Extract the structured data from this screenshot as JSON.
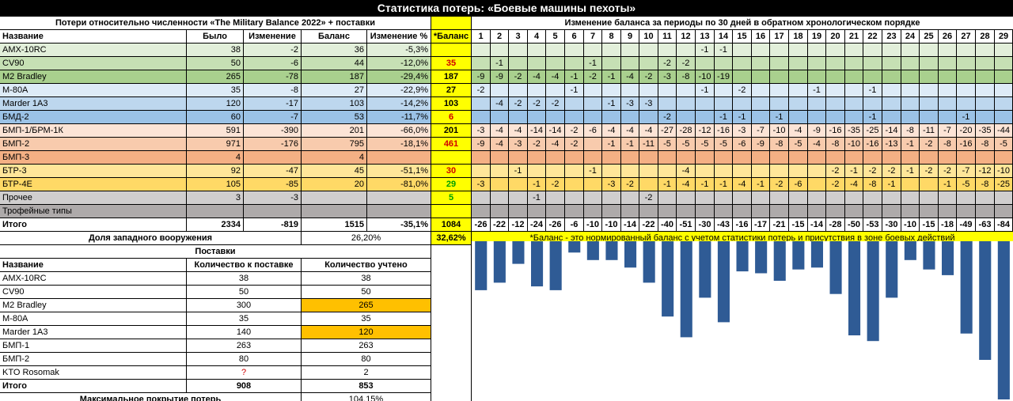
{
  "title": "Статистика потерь: «Боевые машины пехоты»",
  "left_header": "Потери относительно численности «The Military Balance 2022» + поставки",
  "right_header": "Изменение баланса за периоды по 30 дней в обратном хронологическом порядке",
  "columns": [
    "Название",
    "Было",
    "Изменение",
    "Баланс",
    "Изменение %",
    "*Баланс"
  ],
  "periods": [
    "1",
    "2",
    "3",
    "4",
    "5",
    "6",
    "7",
    "8",
    "9",
    "10",
    "11",
    "12",
    "13",
    "14",
    "15",
    "16",
    "17",
    "18",
    "19",
    "20",
    "21",
    "22",
    "23",
    "24",
    "25",
    "26",
    "27",
    "28",
    "29"
  ],
  "rows": [
    {
      "name": "AMX-10RC",
      "was": "38",
      "change": "-2",
      "balance": "36",
      "pct": "-5,3%",
      "nb": "",
      "nb_color": "",
      "bg": "#e2efda",
      "cells": [
        "",
        "",
        "",
        "",
        "",
        "",
        "",
        "",
        "",
        "",
        "",
        "",
        "-1",
        "-1",
        "",
        "",
        "",
        "",
        "",
        "",
        "",
        "",
        "",
        "",
        "",
        "",
        "",
        "",
        ""
      ]
    },
    {
      "name": "CV90",
      "was": "50",
      "change": "-6",
      "balance": "44",
      "pct": "-12,0%",
      "nb": "35",
      "nb_color": "#d00000",
      "bg": "#c6e0b4",
      "cells": [
        "",
        "-1",
        "",
        "",
        "",
        "",
        "-1",
        "",
        "",
        "",
        "-2",
        "-2",
        "",
        "",
        "",
        "",
        "",
        "",
        "",
        "",
        "",
        "",
        "",
        "",
        "",
        "",
        "",
        "",
        ""
      ]
    },
    {
      "name": "M2 Bradley",
      "was": "265",
      "change": "-78",
      "balance": "187",
      "pct": "-29,4%",
      "nb": "187",
      "nb_color": "#000000",
      "bg": "#a9d08e",
      "cells": [
        "-9",
        "-9",
        "-2",
        "-4",
        "-4",
        "-1",
        "-2",
        "-1",
        "-4",
        "-2",
        "-3",
        "-8",
        "-10",
        "-19",
        "",
        "",
        "",
        "",
        "",
        "",
        "",
        "",
        "",
        "",
        "",
        "",
        "",
        "",
        ""
      ]
    },
    {
      "name": "M-80A",
      "was": "35",
      "change": "-8",
      "balance": "27",
      "pct": "-22,9%",
      "nb": "27",
      "nb_color": "#000000",
      "bg": "#ddebf7",
      "cells": [
        "-2",
        "",
        "",
        "",
        "",
        "-1",
        "",
        "",
        "",
        "",
        "",
        "",
        "-1",
        "",
        "-2",
        "",
        "",
        "",
        "-1",
        "",
        "",
        "-1",
        "",
        "",
        "",
        "",
        "",
        "",
        ""
      ]
    },
    {
      "name": "Marder 1A3",
      "was": "120",
      "change": "-17",
      "balance": "103",
      "pct": "-14,2%",
      "nb": "103",
      "nb_color": "#000000",
      "bg": "#bdd7ee",
      "cells": [
        "",
        "-4",
        "-2",
        "-2",
        "-2",
        "",
        "",
        "-1",
        "-3",
        "-3",
        "",
        "",
        "",
        "",
        "",
        "",
        "",
        "",
        "",
        "",
        "",
        "",
        "",
        "",
        "",
        "",
        "",
        "",
        ""
      ]
    },
    {
      "name": "БМД-2",
      "was": "60",
      "change": "-7",
      "balance": "53",
      "pct": "-11,7%",
      "nb": "6",
      "nb_color": "#d00000",
      "bg": "#9bc2e6",
      "cells": [
        "",
        "",
        "",
        "",
        "",
        "",
        "",
        "",
        "",
        "",
        "-2",
        "",
        "",
        "-1",
        "-1",
        "",
        "-1",
        "",
        "",
        "",
        "",
        "-1",
        "",
        "",
        "",
        "",
        "-1",
        "",
        ""
      ]
    },
    {
      "name": "БМП-1/БРМ-1К",
      "was": "591",
      "change": "-390",
      "balance": "201",
      "pct": "-66,0%",
      "nb": "201",
      "nb_color": "#000000",
      "bg": "#fce4d6",
      "cells": [
        "-3",
        "-4",
        "-4",
        "-14",
        "-14",
        "-2",
        "-6",
        "-4",
        "-4",
        "-4",
        "-27",
        "-28",
        "-12",
        "-16",
        "-3",
        "-7",
        "-10",
        "-4",
        "-9",
        "-16",
        "-35",
        "-25",
        "-14",
        "-8",
        "-11",
        "-7",
        "-20",
        "-35",
        "-44"
      ]
    },
    {
      "name": "БМП-2",
      "was": "971",
      "change": "-176",
      "balance": "795",
      "pct": "-18,1%",
      "nb": "461",
      "nb_color": "#d00000",
      "bg": "#f8cbad",
      "cells": [
        "-9",
        "-4",
        "-3",
        "-2",
        "-4",
        "-2",
        "",
        "-1",
        "-1",
        "-11",
        "-5",
        "-5",
        "-5",
        "-5",
        "-6",
        "-9",
        "-8",
        "-5",
        "-4",
        "-8",
        "-10",
        "-16",
        "-13",
        "-1",
        "-2",
        "-8",
        "-16",
        "-8",
        "-5"
      ]
    },
    {
      "name": "БМП-3",
      "was": "4",
      "change": "",
      "balance": "4",
      "pct": "",
      "nb": "",
      "nb_color": "",
      "bg": "#f4b084",
      "cells": [
        "",
        "",
        "",
        "",
        "",
        "",
        "",
        "",
        "",
        "",
        "",
        "",
        "",
        "",
        "",
        "",
        "",
        "",
        "",
        "",
        "",
        "",
        "",
        "",
        "",
        "",
        "",
        "",
        ""
      ]
    },
    {
      "name": "БТР-3",
      "was": "92",
      "change": "-47",
      "balance": "45",
      "pct": "-51,1%",
      "nb": "30",
      "nb_color": "#d00000",
      "bg": "#ffe699",
      "cells": [
        "",
        "",
        "-1",
        "",
        "",
        "",
        "-1",
        "",
        "",
        "",
        "",
        "-4",
        "",
        "",
        "",
        "",
        "",
        "",
        "",
        "-2",
        "-1",
        "-2",
        "-2",
        "-1",
        "-2",
        "-2",
        "-7",
        "-12",
        "-10"
      ]
    },
    {
      "name": "БТР-4Е",
      "was": "105",
      "change": "-85",
      "balance": "20",
      "pct": "-81,0%",
      "nb": "29",
      "nb_color": "#00a000",
      "bg": "#ffd966",
      "cells": [
        "-3",
        "",
        "",
        "-1",
        "-2",
        "",
        "",
        "-3",
        "-2",
        "",
        "-1",
        "-4",
        "-1",
        "-1",
        "-4",
        "-1",
        "-2",
        "-6",
        "",
        "-2",
        "-4",
        "-8",
        "-1",
        "",
        "",
        "-1",
        "-5",
        "-8",
        "-25"
      ]
    },
    {
      "name": "Прочее",
      "was": "3",
      "change": "-3",
      "balance": "",
      "pct": "",
      "nb": "5",
      "nb_color": "#00a000",
      "bg": "#d0cece",
      "cells": [
        "",
        "",
        "",
        "-1",
        "",
        "",
        "",
        "",
        "",
        "-2",
        "",
        "",
        "",
        "",
        "",
        "",
        "",
        "",
        "",
        "",
        "",
        "",
        "",
        "",
        "",
        "",
        "",
        "",
        ""
      ]
    },
    {
      "name": "Трофейные типы",
      "was": "",
      "change": "",
      "balance": "",
      "pct": "",
      "nb": "",
      "nb_color": "",
      "bg": "#aeaaaa",
      "cells": [
        "",
        "",
        "",
        "",
        "",
        "",
        "",
        "",
        "",
        "",
        "",
        "",
        "",
        "",
        "",
        "",
        "",
        "",
        "",
        "",
        "",
        "",
        "",
        "",
        "",
        "",
        "",
        "",
        ""
      ]
    }
  ],
  "total": {
    "name": "Итого",
    "was": "2334",
    "change": "-819",
    "balance": "1515",
    "pct": "-35,1%",
    "nb": "1084",
    "cells": [
      "-26",
      "-22",
      "-12",
      "-24",
      "-26",
      "-6",
      "-10",
      "-10",
      "-14",
      "-22",
      "-40",
      "-51",
      "-30",
      "-43",
      "-16",
      "-17",
      "-21",
      "-15",
      "-14",
      "-28",
      "-50",
      "-53",
      "-30",
      "-10",
      "-15",
      "-18",
      "-49",
      "-63",
      "-84"
    ]
  },
  "western_share": {
    "label": "Доля западного вооружения",
    "value": "26,20%",
    "nb_value": "32,62%"
  },
  "footnote": "*Баланс - это нормированный баланс с учетом статистики потерь и присутствия в зоне боевых действий",
  "supplies": {
    "title": "Поставки",
    "headers": [
      "Название",
      "Количество к поставке",
      "Количество учтено"
    ],
    "rows": [
      {
        "name": "AMX-10RC",
        "qty": "38",
        "counted": "38",
        "highlight": false
      },
      {
        "name": "CV90",
        "qty": "50",
        "counted": "50",
        "highlight": false
      },
      {
        "name": "M2 Bradley",
        "qty": "300",
        "counted": "265",
        "highlight": true
      },
      {
        "name": "M-80A",
        "qty": "35",
        "counted": "35",
        "highlight": false
      },
      {
        "name": "Marder 1A3",
        "qty": "140",
        "counted": "120",
        "highlight": true
      },
      {
        "name": "БМП-1",
        "qty": "263",
        "counted": "263",
        "highlight": false
      },
      {
        "name": "БМП-2",
        "qty": "80",
        "counted": "80",
        "highlight": false
      },
      {
        "name": "KTO Rosomak",
        "qty": "?",
        "counted": "2",
        "highlight": false
      }
    ],
    "total": {
      "name": "Итого",
      "qty": "908",
      "counted": "853"
    },
    "coverage": {
      "label": "Максимальное покрытие потерь",
      "value": "104,15%"
    }
  },
  "colors": {
    "bar": "#2f5b95",
    "nb_column": "#ffff00",
    "highlight": "#ffc000",
    "red": "#d00000",
    "green": "#00a000"
  },
  "chart_data": {
    "type": "bar",
    "categories": [
      "1",
      "2",
      "3",
      "4",
      "5",
      "6",
      "7",
      "8",
      "9",
      "10",
      "11",
      "12",
      "13",
      "14",
      "15",
      "16",
      "17",
      "18",
      "19",
      "20",
      "21",
      "22",
      "23",
      "24",
      "25",
      "26",
      "27",
      "28",
      "29"
    ],
    "values": [
      -26,
      -22,
      -12,
      -24,
      -26,
      -6,
      -10,
      -10,
      -14,
      -22,
      -40,
      -51,
      -30,
      -43,
      -16,
      -17,
      -21,
      -15,
      -14,
      -28,
      -50,
      -53,
      -30,
      -10,
      -15,
      -18,
      -49,
      -63,
      -84
    ],
    "ylim": [
      -84,
      0
    ]
  }
}
